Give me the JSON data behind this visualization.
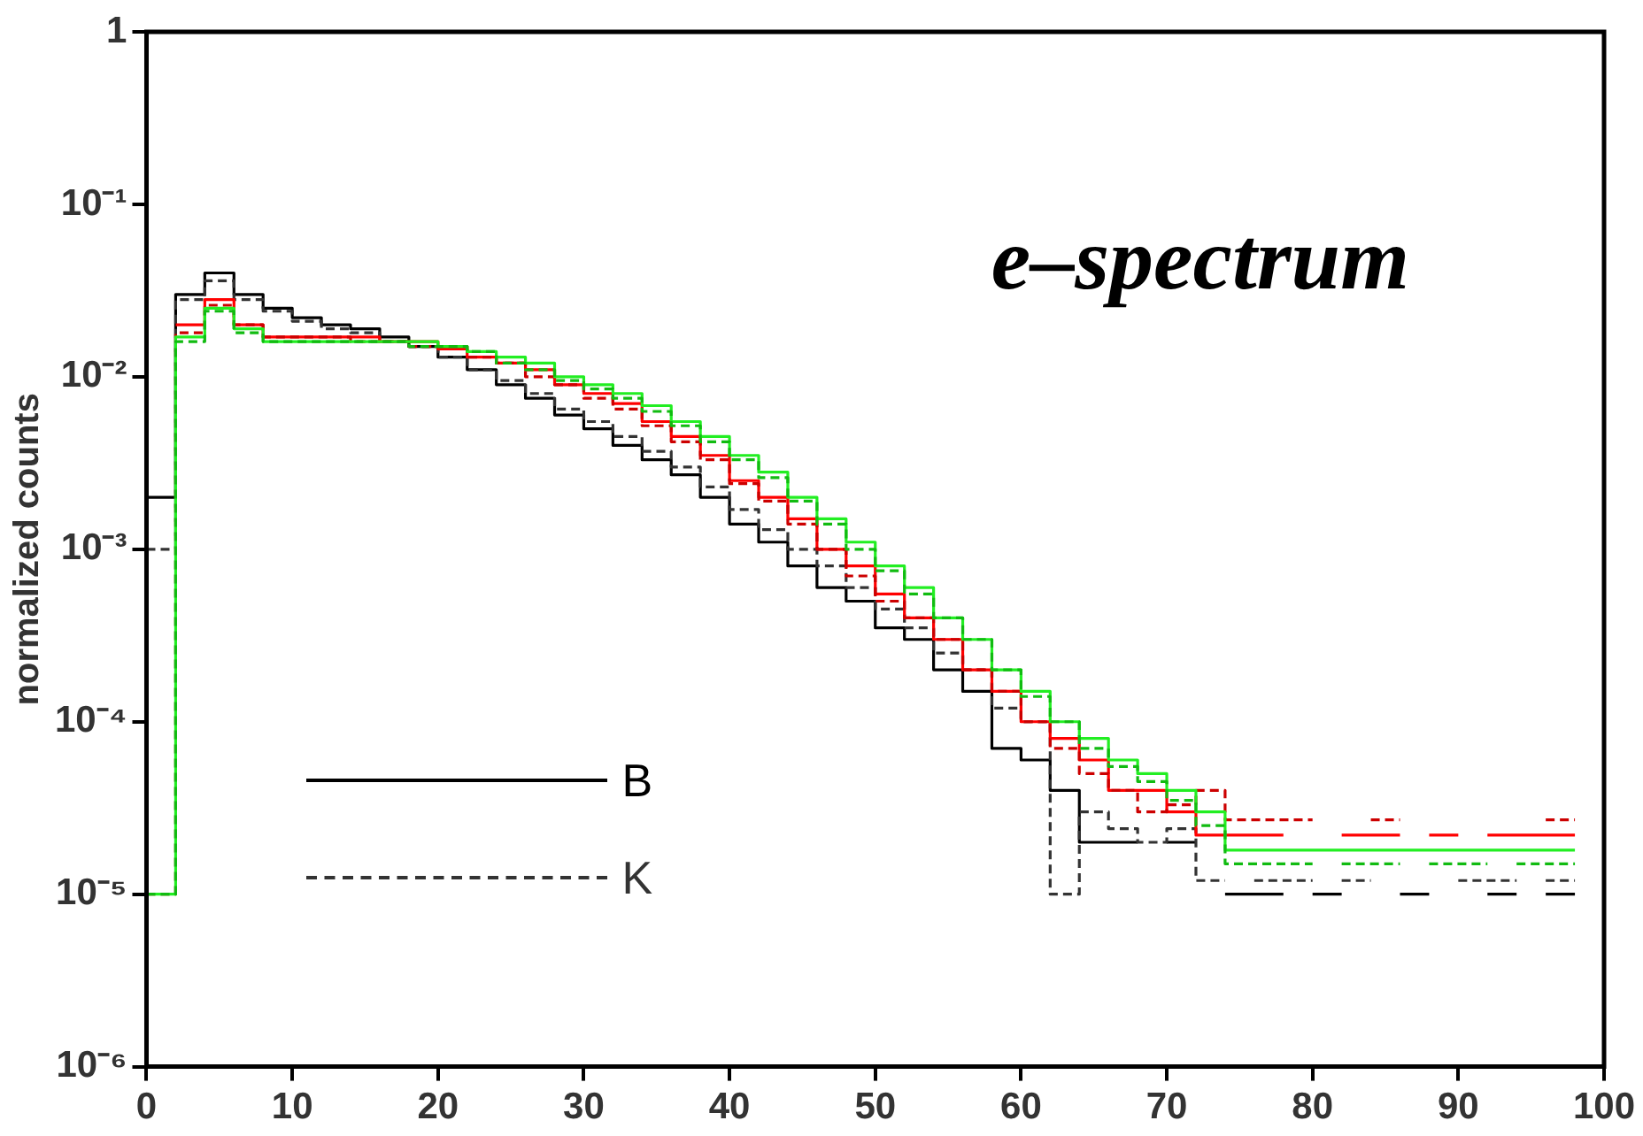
{
  "chart_data": {
    "type": "step",
    "title": "e–spectrum",
    "ylabel": "normalized counts",
    "x": [
      0,
      2,
      4,
      6,
      8,
      10,
      12,
      14,
      16,
      18,
      20,
      22,
      24,
      26,
      28,
      30,
      32,
      34,
      36,
      38,
      40,
      42,
      44,
      46,
      48,
      50,
      52,
      54,
      56,
      58,
      60,
      62,
      64,
      66,
      68,
      70,
      72,
      74,
      76,
      78,
      80,
      82,
      84,
      86,
      88,
      90,
      92,
      94,
      96,
      98
    ],
    "xlim": [
      0,
      100
    ],
    "xticks": [
      0,
      10,
      20,
      30,
      40,
      50,
      60,
      70,
      80,
      90,
      100
    ],
    "ylim": [
      1e-06,
      1
    ],
    "log": "y",
    "yticks": [
      {
        "value": 1e-06,
        "label": "10⁻⁶"
      },
      {
        "value": 1e-05,
        "label": "10⁻⁵"
      },
      {
        "value": 0.0001,
        "label": "10⁻⁴"
      },
      {
        "value": 0.001,
        "label": "10⁻³"
      },
      {
        "value": 0.01,
        "label": "10⁻²"
      },
      {
        "value": 0.1,
        "label": "10⁻¹"
      },
      1
    ],
    "grid": false,
    "legend": "bottom left",
    "series": [
      {
        "name": "B",
        "color": "#000000",
        "line_style": "solid",
        "values": [
          0.002,
          0.03,
          0.04,
          0.03,
          0.025,
          0.022,
          0.02,
          0.019,
          0.017,
          0.015,
          0.013,
          0.011,
          0.009,
          0.0075,
          0.006,
          0.005,
          0.004,
          0.0033,
          0.0027,
          0.002,
          0.0014,
          0.0011,
          0.0008,
          0.0006,
          0.0005,
          0.00035,
          0.0003,
          0.0002,
          0.00015,
          7e-05,
          6e-05,
          4e-05,
          2e-05,
          2e-05,
          null,
          2e-05,
          null,
          1e-05,
          1e-05,
          null,
          1e-05,
          null,
          null,
          1e-05,
          null,
          null,
          1e-05,
          null,
          1e-05,
          1e-05
        ]
      },
      {
        "name": "K",
        "color": "#333333",
        "line_style": "dashed",
        "values": [
          0.001,
          0.028,
          0.036,
          0.028,
          0.024,
          0.021,
          0.019,
          0.018,
          0.016,
          0.015,
          0.013,
          0.011,
          0.0095,
          0.008,
          0.0065,
          0.0055,
          0.0045,
          0.0037,
          0.003,
          0.0023,
          0.0017,
          0.0013,
          0.001,
          0.0008,
          0.0006,
          0.00045,
          0.00035,
          0.00025,
          0.0002,
          0.00012,
          0.0001,
          1e-05,
          3e-05,
          2.4e-05,
          2e-05,
          2.4e-05,
          1.2e-05,
          null,
          1.2e-05,
          1.2e-05,
          null,
          1.2e-05,
          null,
          null,
          null,
          1.2e-05,
          1.2e-05,
          null,
          1.2e-05,
          1.2e-05
        ]
      },
      {
        "color": "#ff0000",
        "line_style": "solid",
        "values": [
          null,
          0.02,
          0.028,
          0.02,
          0.017,
          0.017,
          0.017,
          0.017,
          0.016,
          0.016,
          0.0145,
          0.013,
          0.012,
          0.011,
          0.009,
          0.008,
          0.007,
          0.0055,
          0.0045,
          0.0035,
          0.0025,
          0.002,
          0.0015,
          0.001,
          0.0008,
          0.00055,
          0.0004,
          0.0003,
          0.0002,
          0.00015,
          0.0001,
          8e-05,
          6e-05,
          4e-05,
          4e-05,
          3e-05,
          2.2e-05,
          2.2e-05,
          2.2e-05,
          null,
          null,
          2.2e-05,
          2.2e-05,
          null,
          2.2e-05,
          null,
          2.2e-05,
          2.2e-05,
          2.2e-05,
          2.2e-05
        ]
      },
      {
        "color": "#cc0000",
        "line_style": "dashed",
        "values": [
          1e-05,
          0.018,
          0.026,
          0.02,
          0.017,
          0.017,
          0.017,
          0.016,
          0.016,
          0.015,
          0.015,
          0.013,
          0.012,
          0.01,
          0.009,
          0.0075,
          0.0065,
          0.0052,
          0.0042,
          0.0033,
          0.0024,
          0.0019,
          0.0014,
          0.001,
          0.0007,
          0.0005,
          0.0004,
          0.0003,
          0.0002,
          0.00015,
          0.0001,
          7e-05,
          5e-05,
          4e-05,
          3e-05,
          3.3e-05,
          4e-05,
          2.7e-05,
          2.7e-05,
          2.7e-05,
          null,
          null,
          2.7e-05,
          null,
          null,
          null,
          null,
          null,
          2.7e-05,
          2.7e-05
        ]
      },
      {
        "color": "#22ee22",
        "line_style": "solid",
        "values": [
          1e-05,
          0.017,
          0.025,
          0.019,
          0.016,
          0.016,
          0.016,
          0.016,
          0.016,
          0.016,
          0.015,
          0.014,
          0.013,
          0.012,
          0.01,
          0.009,
          0.008,
          0.0068,
          0.0055,
          0.0045,
          0.0035,
          0.0028,
          0.002,
          0.0015,
          0.0011,
          0.0008,
          0.0006,
          0.0004,
          0.0003,
          0.0002,
          0.00015,
          0.0001,
          8e-05,
          6e-05,
          5e-05,
          4e-05,
          3e-05,
          1.8e-05,
          1.8e-05,
          1.8e-05,
          1.8e-05,
          1.8e-05,
          1.8e-05,
          1.8e-05,
          1.8e-05,
          1.8e-05,
          1.8e-05,
          1.8e-05,
          1.8e-05,
          1.8e-05
        ]
      },
      {
        "color": "#11bb11",
        "line_style": "dashed",
        "values": [
          1e-05,
          0.016,
          0.024,
          0.018,
          0.016,
          0.016,
          0.016,
          0.016,
          0.016,
          0.015,
          0.015,
          0.014,
          0.012,
          0.011,
          0.0095,
          0.0085,
          0.0075,
          0.0063,
          0.0052,
          0.0042,
          0.0033,
          0.0026,
          0.0019,
          0.0014,
          0.001,
          0.00075,
          0.00055,
          0.0004,
          0.0003,
          0.0002,
          0.00014,
          0.0001,
          7e-05,
          5.5e-05,
          4.5e-05,
          3.5e-05,
          2.5e-05,
          1.5e-05,
          1.5e-05,
          1.5e-05,
          null,
          1.5e-05,
          1.5e-05,
          null,
          1.5e-05,
          1.5e-05,
          null,
          1.5e-05,
          1.5e-05,
          1.5e-05
        ]
      }
    ]
  }
}
